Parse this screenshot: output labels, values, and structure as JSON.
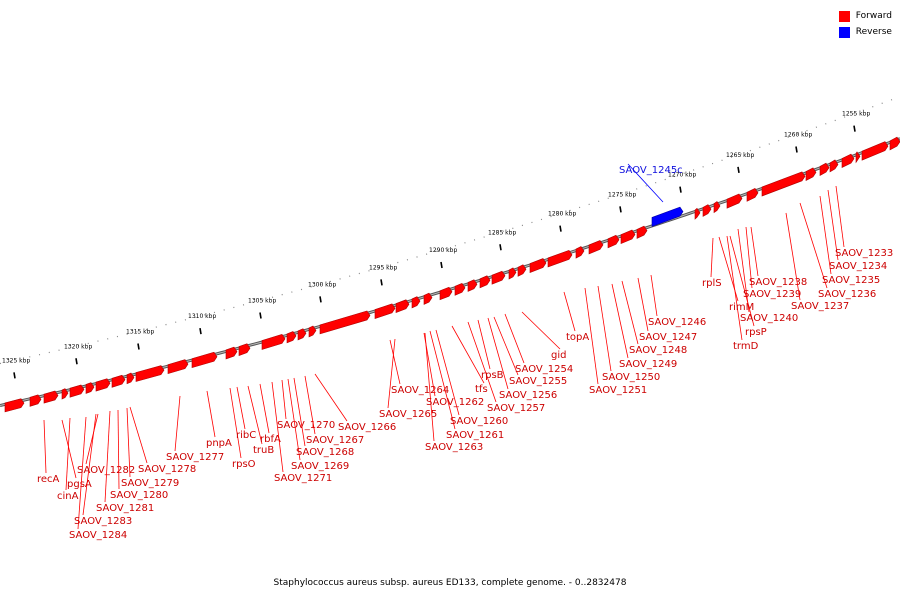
{
  "legend": {
    "forward": {
      "label": "Forward",
      "color": "#ff0000"
    },
    "reverse": {
      "label": "Reverse",
      "color": "#0000ff"
    }
  },
  "caption": "Staphylococcus aureus subsp. aureus ED133, complete genome. - 0..2832478",
  "ticks": [
    "1325 kbp",
    "1320 kbp",
    "1315 kbp",
    "1310 kbp",
    "1305 kbp",
    "1300 kbp",
    "1295 kbp",
    "1290 kbp",
    "1285 kbp",
    "1280 kbp",
    "1275 kbp",
    "1270 kbp",
    "1265 kbp",
    "1260 kbp",
    "1255 kbp"
  ],
  "genes": [
    {
      "label": "recA",
      "strand": "forward"
    },
    {
      "label": "cinA",
      "strand": "forward"
    },
    {
      "label": "pgsA",
      "strand": "forward"
    },
    {
      "label": "SAOV_1284",
      "strand": "forward"
    },
    {
      "label": "SAOV_1283",
      "strand": "forward"
    },
    {
      "label": "SAOV_1282",
      "strand": "forward"
    },
    {
      "label": "SAOV_1281",
      "strand": "forward"
    },
    {
      "label": "SAOV_1280",
      "strand": "forward"
    },
    {
      "label": "SAOV_1279",
      "strand": "forward"
    },
    {
      "label": "SAOV_1278",
      "strand": "forward"
    },
    {
      "label": "SAOV_1277",
      "strand": "forward"
    },
    {
      "label": "pnpA",
      "strand": "forward"
    },
    {
      "label": "rpsO",
      "strand": "forward"
    },
    {
      "label": "ribC",
      "strand": "forward"
    },
    {
      "label": "truB",
      "strand": "forward"
    },
    {
      "label": "rbfA",
      "strand": "forward"
    },
    {
      "label": "SAOV_1271",
      "strand": "forward"
    },
    {
      "label": "SAOV_1270",
      "strand": "forward"
    },
    {
      "label": "SAOV_1269",
      "strand": "forward"
    },
    {
      "label": "SAOV_1268",
      "strand": "forward"
    },
    {
      "label": "SAOV_1267",
      "strand": "forward"
    },
    {
      "label": "SAOV_1266",
      "strand": "forward"
    },
    {
      "label": "SAOV_1265",
      "strand": "forward"
    },
    {
      "label": "SAOV_1264",
      "strand": "forward"
    },
    {
      "label": "SAOV_1263",
      "strand": "forward"
    },
    {
      "label": "SAOV_1262",
      "strand": "forward"
    },
    {
      "label": "SAOV_1261",
      "strand": "forward"
    },
    {
      "label": "SAOV_1260",
      "strand": "forward"
    },
    {
      "label": "tfs",
      "strand": "forward"
    },
    {
      "label": "SAOV_1257",
      "strand": "forward"
    },
    {
      "label": "rpsB",
      "strand": "forward"
    },
    {
      "label": "SAOV_1256",
      "strand": "forward"
    },
    {
      "label": "SAOV_1255",
      "strand": "forward"
    },
    {
      "label": "SAOV_1254",
      "strand": "forward"
    },
    {
      "label": "gid",
      "strand": "forward"
    },
    {
      "label": "topA",
      "strand": "forward"
    },
    {
      "label": "SAOV_1251",
      "strand": "forward"
    },
    {
      "label": "SAOV_1250",
      "strand": "forward"
    },
    {
      "label": "SAOV_1249",
      "strand": "forward"
    },
    {
      "label": "SAOV_1248",
      "strand": "forward"
    },
    {
      "label": "SAOV_1247",
      "strand": "forward"
    },
    {
      "label": "SAOV_1246",
      "strand": "forward"
    },
    {
      "label": "SAOV_1245c",
      "strand": "reverse"
    },
    {
      "label": "trmD",
      "strand": "forward"
    },
    {
      "label": "rpsP",
      "strand": "forward"
    },
    {
      "label": "rimM",
      "strand": "forward"
    },
    {
      "label": "rplS",
      "strand": "forward"
    },
    {
      "label": "SAOV_1240",
      "strand": "forward"
    },
    {
      "label": "SAOV_1239",
      "strand": "forward"
    },
    {
      "label": "SAOV_1238",
      "strand": "forward"
    },
    {
      "label": "SAOV_1237",
      "strand": "forward"
    },
    {
      "label": "SAOV_1236",
      "strand": "forward"
    },
    {
      "label": "SAOV_1235",
      "strand": "forward"
    },
    {
      "label": "SAOV_1234",
      "strand": "forward"
    },
    {
      "label": "SAOV_1233",
      "strand": "forward"
    }
  ]
}
